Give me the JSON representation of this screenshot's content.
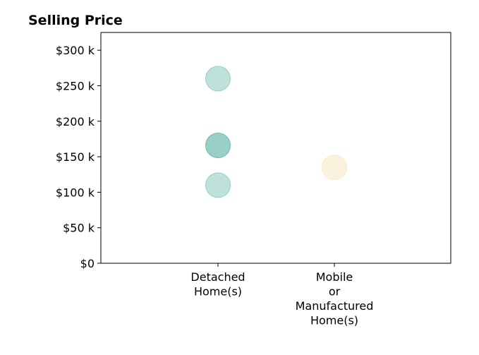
{
  "chart_data": {
    "type": "scatter",
    "title": "Selling Price",
    "xlabel": "",
    "ylabel": "",
    "categories": [
      [
        "Detached",
        "Home(s)"
      ],
      [
        "Mobile",
        "or",
        "Manufactured",
        "Home(s)"
      ]
    ],
    "ylim": [
      0,
      325000
    ],
    "yticks": [
      {
        "value": 0,
        "label": "$0"
      },
      {
        "value": 50000,
        "label": "$50 k"
      },
      {
        "value": 100000,
        "label": "$100 k"
      },
      {
        "value": 150000,
        "label": "$150 k"
      },
      {
        "value": 200000,
        "label": "$200 k"
      },
      {
        "value": 250000,
        "label": "$250 k"
      },
      {
        "value": 300000,
        "label": "$300 k"
      }
    ],
    "grid": false,
    "series": [
      {
        "color": "#66b8ab",
        "points": [
          {
            "category": 0,
            "y": 260000
          },
          {
            "category": 0,
            "y": 166000
          },
          {
            "category": 0,
            "y": 166000
          },
          {
            "category": 0,
            "y": 110000
          }
        ]
      },
      {
        "color": "#f5dfb0",
        "points": [
          {
            "category": 1,
            "y": 135000
          }
        ]
      }
    ]
  }
}
